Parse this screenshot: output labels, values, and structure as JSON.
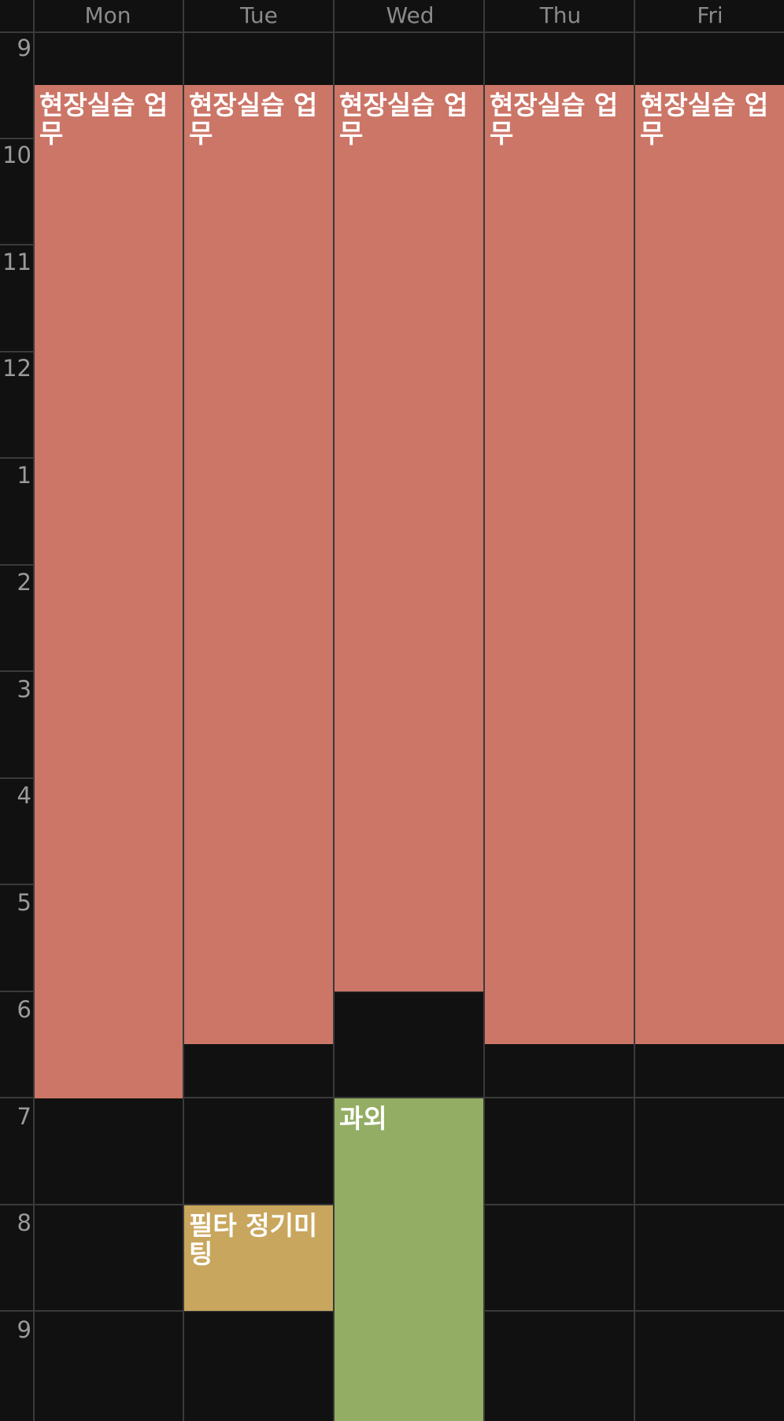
{
  "colors": {
    "background": "#111111",
    "grid_line": "#3a3a3a",
    "day_text": "#8a8a8a",
    "hour_text": "#9a9a9a",
    "event_work": "#cc7667",
    "event_meeting": "#c9a65d",
    "event_tutoring": "#93ad64"
  },
  "days": [
    "Mon",
    "Tue",
    "Wed",
    "Thu",
    "Fri"
  ],
  "hours": [
    "9",
    "10",
    "11",
    "12",
    "1",
    "2",
    "3",
    "4",
    "5",
    "6",
    "7",
    "8",
    "9"
  ],
  "events": [
    {
      "id": "mon-work",
      "title": "현장실습 업무",
      "day": "Mon",
      "start": "9:30",
      "end": "19:00",
      "color": "#cc7667"
    },
    {
      "id": "tue-work",
      "title": "현장실습 업무",
      "day": "Tue",
      "start": "9:30",
      "end": "18:30",
      "color": "#cc7667"
    },
    {
      "id": "wed-work",
      "title": "현장실습 업무",
      "day": "Wed",
      "start": "9:30",
      "end": "18:00",
      "color": "#cc7667"
    },
    {
      "id": "thu-work",
      "title": "현장실습 업무",
      "day": "Thu",
      "start": "9:30",
      "end": "18:30",
      "color": "#cc7667"
    },
    {
      "id": "fri-work",
      "title": "현장실습 업무",
      "day": "Fri",
      "start": "9:30",
      "end": "18:30",
      "color": "#cc7667"
    },
    {
      "id": "tue-meeting",
      "title": "필타 정기미팅",
      "day": "Tue",
      "start": "20:00",
      "end": "21:00",
      "color": "#c9a65d"
    },
    {
      "id": "wed-tutoring",
      "title": "과외",
      "day": "Wed",
      "start": "19:00",
      "end": "22:00",
      "color": "#93ad64"
    }
  ]
}
